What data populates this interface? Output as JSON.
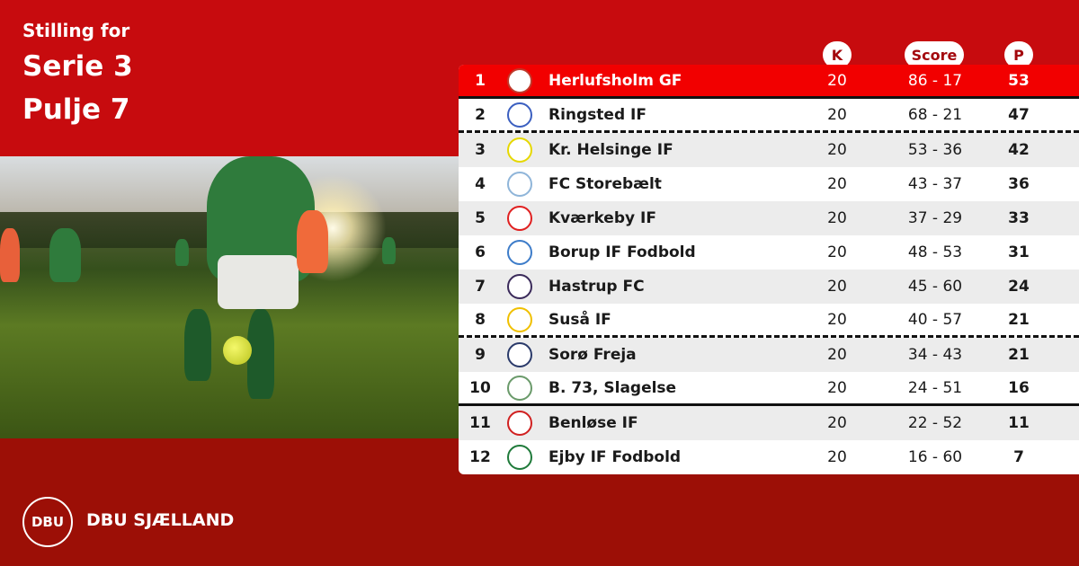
{
  "header": {
    "line1": "Stilling for",
    "line2": "Serie 3",
    "line3": "Pulje 7"
  },
  "columns": {
    "k": "K",
    "score": "Score",
    "p": "P"
  },
  "rows": [
    {
      "rank": "1",
      "team": "Herlufsholm GF",
      "k": "20",
      "score": "86 - 17",
      "p": "53",
      "logo_color": "#c0392b"
    },
    {
      "rank": "2",
      "team": "Ringsted IF",
      "k": "20",
      "score": "68 - 21",
      "p": "47",
      "logo_color": "#3b5fc0"
    },
    {
      "rank": "3",
      "team": "Kr. Helsinge IF",
      "k": "20",
      "score": "53 - 36",
      "p": "42",
      "logo_color": "#e6d800"
    },
    {
      "rank": "4",
      "team": "FC Storebælt",
      "k": "20",
      "score": "43 - 37",
      "p": "36",
      "logo_color": "#8fb5d9"
    },
    {
      "rank": "5",
      "team": "Kværkeby IF",
      "k": "20",
      "score": "37 - 29",
      "p": "33",
      "logo_color": "#e02020"
    },
    {
      "rank": "6",
      "team": "Borup IF Fodbold",
      "k": "20",
      "score": "48 - 53",
      "p": "31",
      "logo_color": "#3d7cc9"
    },
    {
      "rank": "7",
      "team": "Hastrup FC",
      "k": "20",
      "score": "45 - 60",
      "p": "24",
      "logo_color": "#3a2a5a"
    },
    {
      "rank": "8",
      "team": "Suså IF",
      "k": "20",
      "score": "40 - 57",
      "p": "21",
      "logo_color": "#f0c000"
    },
    {
      "rank": "9",
      "team": "Sorø Freja",
      "k": "20",
      "score": "34 - 43",
      "p": "21",
      "logo_color": "#2a3a6a"
    },
    {
      "rank": "10",
      "team": "B. 73, Slagelse",
      "k": "20",
      "score": "24 - 51",
      "p": "16",
      "logo_color": "#6a9a6a"
    },
    {
      "rank": "11",
      "team": "Benløse IF",
      "k": "20",
      "score": "22 - 52",
      "p": "11",
      "logo_color": "#d02020"
    },
    {
      "rank": "12",
      "team": "Ejby IF Fodbold",
      "k": "20",
      "score": "16 - 60",
      "p": "7",
      "logo_color": "#1f7a3a"
    }
  ],
  "brand": {
    "logo": "DBU",
    "name": "DBU SJÆLLAND"
  },
  "colors": {
    "background": "#c70b0e",
    "footer": "#9c0f06",
    "leader_row": "#f20000"
  }
}
